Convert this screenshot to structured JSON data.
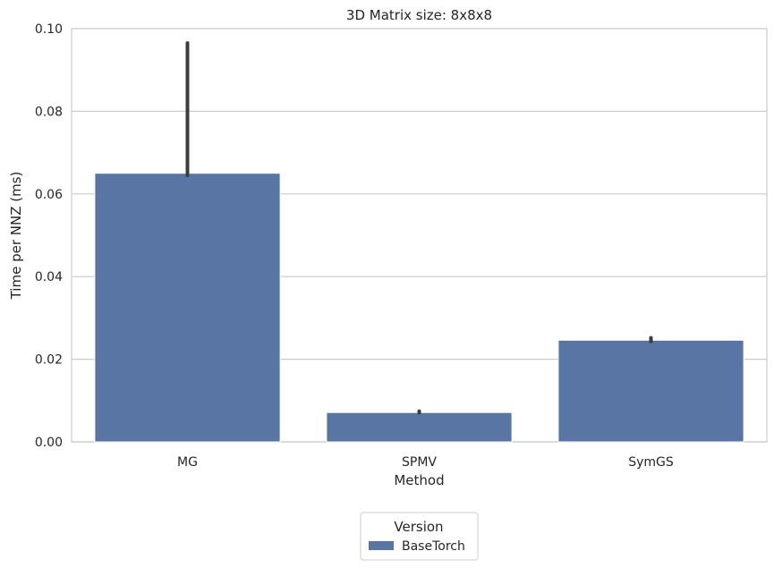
{
  "chart_data": {
    "type": "bar",
    "title": "3D Matrix size: 8x8x8",
    "xlabel": "Method",
    "ylabel": "Time per NNZ (ms)",
    "categories": [
      "MG",
      "SPMV",
      "SymGS"
    ],
    "ylim": [
      0,
      0.1
    ],
    "yticks": [
      0.0,
      0.02,
      0.04,
      0.06,
      0.08,
      0.1
    ],
    "ytick_labels": [
      "0.00",
      "0.02",
      "0.04",
      "0.06",
      "0.08",
      "0.10"
    ],
    "grid": true,
    "series": [
      {
        "name": "BaseTorch",
        "color": "#5875a4",
        "values": [
          0.065,
          0.0071,
          0.0246
        ],
        "error_low": [
          0.0645,
          0.0071,
          0.0243
        ],
        "error_high": [
          0.0965,
          0.0071,
          0.0252
        ]
      }
    ],
    "legend": {
      "title": "Version",
      "placement": "bottom-center"
    }
  }
}
